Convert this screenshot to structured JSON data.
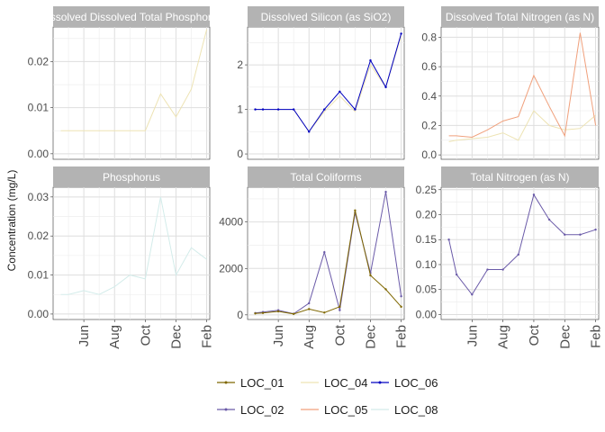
{
  "chart_data": {
    "type": "line",
    "ylabel": "Concentration (mg/L)",
    "x_ticks": [
      {
        "label": "Jun",
        "x": 1
      },
      {
        "label": "Aug",
        "x": 3
      },
      {
        "label": "Oct",
        "x": 5
      },
      {
        "label": "Dec",
        "x": 7
      },
      {
        "label": "Feb",
        "x": 9
      }
    ],
    "legend": {
      "position": "bottom",
      "entries": [
        {
          "name": "LOC_01",
          "color": "#7f6700",
          "marker": true
        },
        {
          "name": "LOC_04",
          "color": "#ede3b3",
          "marker": false
        },
        {
          "name": "LOC_06",
          "color": "#0000c0",
          "marker": true
        },
        {
          "name": "LOC_02",
          "color": "#6a5aa8",
          "marker": true
        },
        {
          "name": "LOC_05",
          "color": "#f0a07c",
          "marker": false
        },
        {
          "name": "LOC_08",
          "color": "#d3ecea",
          "marker": false
        }
      ]
    },
    "panels": [
      {
        "title": "Dissolved Dissolved Total Phosphorus",
        "ylim": [
          -0.0012,
          0.0275
        ],
        "yticks": [
          {
            "v": 0.0,
            "label": "0.00"
          },
          {
            "v": 0.01,
            "label": "0.01"
          },
          {
            "v": 0.02,
            "label": "0.02"
          }
        ],
        "series": [
          {
            "name": "LOC_04",
            "x": [
              -0.5,
              0,
              1,
              2,
              3,
              4,
              5,
              6,
              7,
              8,
              9
            ],
            "y": [
              0.005,
              0.005,
              0.005,
              0.005,
              0.005,
              0.005,
              0.005,
              0.013,
              0.008,
              0.014,
              0.027
            ]
          }
        ]
      },
      {
        "title": "Dissolved Silicon (as SiO2)",
        "ylim": [
          -0.12,
          2.85
        ],
        "yticks": [
          {
            "v": 0,
            "label": "0"
          },
          {
            "v": 1,
            "label": "1"
          },
          {
            "v": 2,
            "label": "2"
          }
        ],
        "series": [
          {
            "name": "LOC_04",
            "x": [
              2,
              3,
              4,
              5,
              6,
              7,
              8,
              9
            ],
            "y": [
              1.0,
              0.5,
              0.95,
              1.3,
              0.95,
              2.0,
              1.5,
              2.65
            ]
          },
          {
            "name": "LOC_06",
            "x": [
              -0.5,
              0,
              1,
              2,
              3,
              4,
              5,
              6,
              7,
              8,
              9
            ],
            "y": [
              1.0,
              1.0,
              1.0,
              1.0,
              0.5,
              1.0,
              1.4,
              1.0,
              2.1,
              1.5,
              2.7
            ]
          }
        ]
      },
      {
        "title": "Dissolved Total Nitrogen (as N)",
        "ylim": [
          -0.03,
          0.87
        ],
        "yticks": [
          {
            "v": 0.0,
            "label": "0.0"
          },
          {
            "v": 0.2,
            "label": "0.2"
          },
          {
            "v": 0.4,
            "label": "0.4"
          },
          {
            "v": 0.6,
            "label": "0.6"
          },
          {
            "v": 0.8,
            "label": "0.8"
          }
        ],
        "series": [
          {
            "name": "LOC_04",
            "x": [
              -0.5,
              0,
              1,
              2,
              3,
              4,
              5,
              6,
              7,
              8,
              9
            ],
            "y": [
              0.09,
              0.1,
              0.11,
              0.12,
              0.15,
              0.1,
              0.3,
              0.2,
              0.17,
              0.18,
              0.27
            ]
          },
          {
            "name": "LOC_05",
            "x": [
              -0.5,
              0,
              1,
              2,
              3,
              4,
              5,
              6,
              7,
              8,
              9
            ],
            "y": [
              0.13,
              0.13,
              0.12,
              0.17,
              0.23,
              0.26,
              0.54,
              0.33,
              0.13,
              0.83,
              0.2
            ]
          }
        ]
      },
      {
        "title": "Phosphorus",
        "ylim": [
          -0.0014,
          0.0325
        ],
        "yticks": [
          {
            "v": 0.0,
            "label": "0.00"
          },
          {
            "v": 0.01,
            "label": "0.01"
          },
          {
            "v": 0.02,
            "label": "0.02"
          },
          {
            "v": 0.03,
            "label": "0.03"
          }
        ],
        "series": [
          {
            "name": "LOC_08",
            "x": [
              -0.5,
              0,
              1,
              2,
              3,
              4,
              5,
              6,
              7,
              8,
              9
            ],
            "y": [
              0.005,
              0.005,
              0.006,
              0.005,
              0.007,
              0.01,
              0.009,
              0.03,
              0.01,
              0.017,
              0.014
            ]
          }
        ]
      },
      {
        "title": "Total Coliforms",
        "ylim": [
          -200,
          5500
        ],
        "yticks": [
          {
            "v": 0,
            "label": "0"
          },
          {
            "v": 2000,
            "label": "2000"
          },
          {
            "v": 4000,
            "label": "4000"
          }
        ],
        "series": [
          {
            "name": "LOC_02",
            "x": [
              -0.5,
              0,
              1,
              2,
              3,
              4,
              5,
              6,
              7,
              8,
              9
            ],
            "y": [
              80,
              120,
              200,
              50,
              500,
              2700,
              200,
              4400,
              1800,
              5300,
              800
            ]
          },
          {
            "name": "LOC_01",
            "x": [
              -0.5,
              0,
              1,
              2,
              3,
              4,
              5,
              6,
              7,
              8,
              9
            ],
            "y": [
              60,
              80,
              150,
              40,
              250,
              100,
              350,
              4500,
              1700,
              1100,
              350
            ]
          }
        ]
      },
      {
        "title": "Total Nitrogen (as N)",
        "ylim": [
          -0.01,
          0.255
        ],
        "yticks": [
          {
            "v": 0.0,
            "label": "0.00"
          },
          {
            "v": 0.05,
            "label": "0.05"
          },
          {
            "v": 0.1,
            "label": "0.10"
          },
          {
            "v": 0.15,
            "label": "0.15"
          },
          {
            "v": 0.2,
            "label": "0.20"
          },
          {
            "v": 0.25,
            "label": "0.25"
          }
        ],
        "series": [
          {
            "name": "LOC_02",
            "x": [
              -0.5,
              0,
              1,
              2,
              3,
              4,
              5,
              6,
              7,
              8,
              9
            ],
            "y": [
              0.15,
              0.08,
              0.04,
              0.09,
              0.09,
              0.12,
              0.24,
              0.19,
              0.16,
              0.16,
              0.17
            ]
          }
        ]
      }
    ]
  }
}
